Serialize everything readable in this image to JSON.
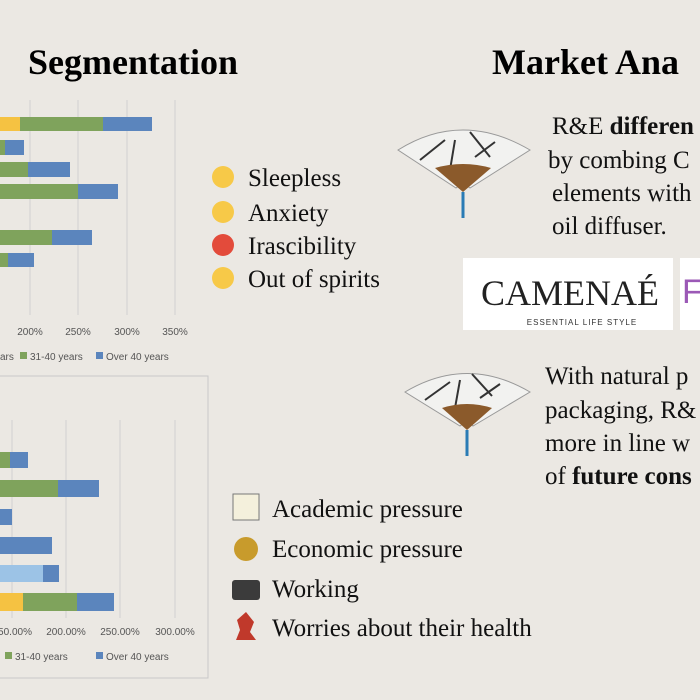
{
  "left": {
    "title": "Segmentation",
    "chart1": {
      "xticks": [
        "200%",
        "250%",
        "300%",
        "350%"
      ],
      "legend": [
        "ars",
        "31-40 years",
        "Over 40 years"
      ]
    },
    "symptoms": [
      "Sleepless",
      "Anxiety",
      "Irascibility",
      "Out of spirits"
    ],
    "chart2": {
      "xticks": [
        "50.00%",
        "200.00%",
        "250.00%",
        "300.00%"
      ],
      "legend": [
        "31-40 years",
        "Over 40 years"
      ]
    },
    "causes": [
      "Academic pressure",
      "Economic pressure",
      "Working",
      "Worries about their health"
    ]
  },
  "right": {
    "title": "Market Ana",
    "para1": [
      {
        "text": "R&E ",
        "bold": "differen"
      },
      {
        "text": "by combing C"
      },
      {
        "text": "elements with"
      },
      {
        "text": "oil diffuser."
      }
    ],
    "logo": {
      "name": "CAMENAÉ",
      "tagline": "ESSENTIAL LIFE STYLE",
      "second": "F"
    },
    "para2": [
      {
        "text": "With natural p"
      },
      {
        "text": "packaging, R&"
      },
      {
        "text": "more in line w"
      },
      {
        "text": "of ",
        "bold": "future cons"
      }
    ]
  }
}
